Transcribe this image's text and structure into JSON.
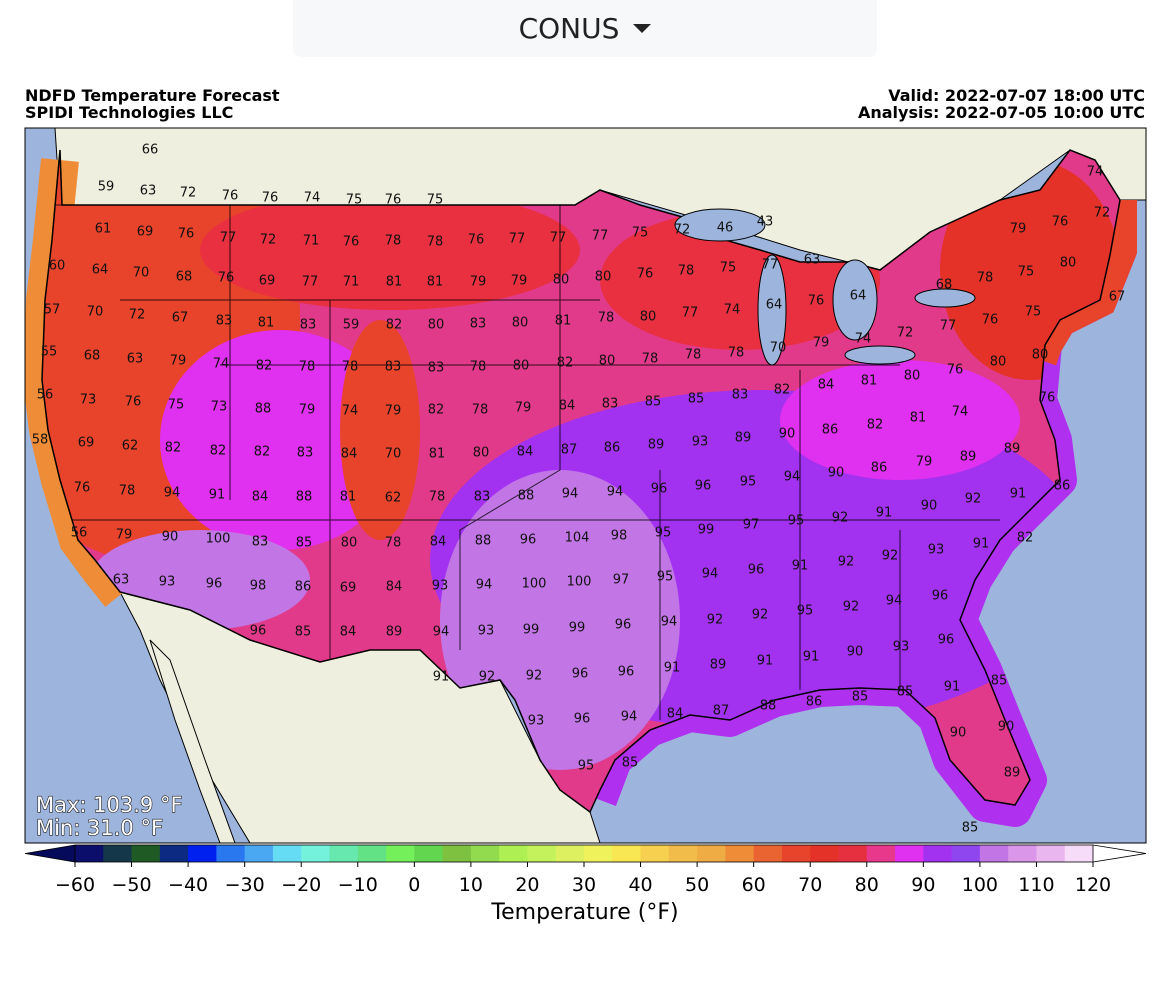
{
  "dropdown": {
    "label": "CONUS"
  },
  "header": {
    "title": "NDFD Temperature Forecast",
    "subtitle": "SPIDI Technologies LLC",
    "valid": "Valid: 2022-07-07 18:00 UTC",
    "analysis": "Analysis: 2022-07-05 10:00 UTC"
  },
  "map": {
    "max_label": "Max: 103.9 °F",
    "min_label": "Min: 31.0 °F",
    "temperatures": [
      66,
      59,
      63,
      72,
      76,
      76,
      74,
      75,
      76,
      75,
      74,
      72,
      46,
      43,
      76,
      79,
      72,
      61,
      69,
      76,
      77,
      72,
      71,
      76,
      78,
      78,
      76,
      77,
      77,
      77,
      75,
      77,
      63,
      60,
      64,
      70,
      68,
      76,
      69,
      77,
      71,
      81,
      81,
      79,
      79,
      80,
      80,
      76,
      78,
      75,
      76,
      64,
      68,
      78,
      75,
      80,
      67,
      57,
      70,
      72,
      67,
      83,
      81,
      83,
      59,
      82,
      80,
      83,
      80,
      81,
      78,
      80,
      77,
      74,
      64,
      75,
      76,
      77,
      55,
      68,
      63,
      79,
      74,
      82,
      78,
      78,
      83,
      83,
      78,
      80,
      82,
      80,
      78,
      78,
      78,
      70,
      79,
      74,
      72,
      80,
      80,
      76,
      81,
      80,
      56,
      73,
      76,
      75,
      73,
      88,
      79,
      74,
      79,
      82,
      78,
      79,
      84,
      83,
      85,
      85,
      83,
      82,
      84,
      76,
      74,
      58,
      69,
      62,
      82,
      82,
      82,
      83,
      84,
      70,
      81,
      80,
      84,
      87,
      86,
      89,
      93,
      89,
      90,
      86,
      82,
      81,
      89,
      76,
      78,
      94,
      91,
      84,
      88,
      81,
      62,
      78,
      83,
      88,
      94,
      94,
      96,
      96,
      95,
      94,
      90,
      86,
      79,
      89,
      86,
      91,
      56,
      79,
      90,
      100,
      83,
      85,
      80,
      78,
      84,
      88,
      96,
      104,
      98,
      95,
      99,
      97,
      95,
      92,
      91,
      90,
      92,
      82,
      91,
      93,
      92,
      92,
      91,
      96,
      63,
      93,
      96,
      98,
      86,
      69,
      84,
      93,
      94,
      100,
      100,
      97,
      95,
      94,
      96,
      94,
      92,
      95,
      92,
      92,
      94,
      96,
      85,
      84,
      89,
      94,
      93,
      99,
      99,
      96,
      93,
      90,
      91,
      91,
      89,
      91,
      96,
      91,
      92,
      92,
      96,
      96,
      85,
      85,
      91,
      85,
      86,
      88,
      87,
      84,
      94,
      93,
      96,
      90,
      90,
      95,
      85,
      89,
      85
    ]
  },
  "colorbar": {
    "label": "Temperature (°F)",
    "lim": [
      -60,
      120
    ],
    "ticks": [
      {
        "value": -60,
        "label": "−60"
      },
      {
        "value": -50,
        "label": "−50"
      },
      {
        "value": -40,
        "label": "−40"
      },
      {
        "value": -30,
        "label": "−30"
      },
      {
        "value": -20,
        "label": "−20"
      },
      {
        "value": -10,
        "label": "−10"
      },
      0,
      10,
      20,
      30,
      40,
      50,
      60,
      70,
      80,
      90,
      100,
      110,
      120
    ],
    "under_color": "#050a5a",
    "over_color": "#ffffff",
    "colors": [
      "#0b0f6b",
      "#14384a",
      "#1f5a25",
      "#0c2a82",
      "#0020f0",
      "#2a78f0",
      "#4aa8f2",
      "#66dcf4",
      "#74f2dc",
      "#66e8ae",
      "#62e284",
      "#74f05a",
      "#62d64e",
      "#7ec040",
      "#92da4e",
      "#aef054",
      "#c4f25c",
      "#dcf060",
      "#f0f25c",
      "#f8e652",
      "#f6d04e",
      "#f2bc4a",
      "#f0ac44",
      "#ee8c38",
      "#ea6432",
      "#e8442c",
      "#e43228",
      "#e63040",
      "#e8388c",
      "#e030f0",
      "#a232f0",
      "#9046ee",
      "#c276e6",
      "#da96e8",
      "#eab6f0",
      "#f6dcf8"
    ]
  }
}
